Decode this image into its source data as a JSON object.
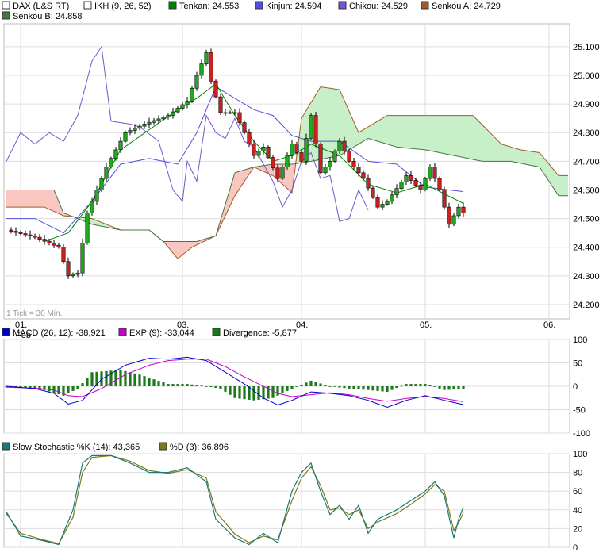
{
  "colors": {
    "up": "#22aa22",
    "down": "#cc2222",
    "tenkan": "#008000",
    "kinjun": "#5050dd",
    "chikou": "#7755cc",
    "senkouA": "#a05a2c",
    "senkouB": "#447744",
    "cloud_bull": "#c8f0c8",
    "cloud_bear": "#f8c8c0",
    "macd": "#0000cc",
    "ema": "#cc00cc",
    "divergence": "#1a7a1a",
    "stochK": "#1a7a7a",
    "stochD": "#7a7a1a",
    "grid": "#dddddd"
  },
  "main_legend": [
    {
      "icon": "square-icon-dax",
      "label": "DAX (L&S RT)",
      "color": "#ffffff"
    },
    {
      "icon": "square-icon-ikh",
      "label": "IKH (9, 26, 52)",
      "color": "#ffffff"
    },
    {
      "icon": "square-icon-tenkan",
      "label": "Tenkan: 24.553",
      "color": "#008000"
    },
    {
      "icon": "square-icon-kinjun",
      "label": "Kinjun: 24.594",
      "color": "#5050dd"
    },
    {
      "icon": "square-icon-chikou",
      "label": "Chikou: 24.529",
      "color": "#7755cc"
    },
    {
      "icon": "square-icon-senkou-a",
      "label": "Senkou A: 24.729",
      "color": "#a05a2c"
    },
    {
      "icon": "square-icon-senkou-b",
      "label": "Senkou B: 24.858",
      "color": "#447744"
    }
  ],
  "main_note": "1 Tick = 30 Min.",
  "macd_legend": [
    {
      "icon": "square-icon-macd",
      "label": "MACD (26, 12): -38,921",
      "color": "#0000cc"
    },
    {
      "icon": "square-icon-exp",
      "label": "EXP (9): -33,044",
      "color": "#cc00cc"
    },
    {
      "icon": "square-icon-divergence",
      "label": "Divergence: -5,877",
      "color": "#1a7a1a"
    }
  ],
  "stoch_legend": [
    {
      "icon": "square-icon-stoch-k",
      "label": "Slow Stochastic %K (14): 43,365",
      "color": "#1a7a7a"
    },
    {
      "icon": "square-icon-stoch-d",
      "label": "%D (3): 36,896",
      "color": "#7a7a1a"
    }
  ],
  "x_ticks": [
    {
      "label": "01.",
      "bar": 3
    },
    {
      "label": "03.",
      "bar": 37
    },
    {
      "label": "04.",
      "bar": 62
    },
    {
      "label": "05.",
      "bar": 88
    },
    {
      "label": "06.",
      "bar": 114
    }
  ],
  "x_sublabel": "Feb",
  "chart_data": [
    {
      "type": "candlestick",
      "title": "DAX (L&S RT)",
      "ylim": [
        24150,
        25180
      ],
      "y_ticks": [
        24200,
        24300,
        24400,
        24500,
        24600,
        24700,
        24800,
        24900,
        25000,
        25100
      ],
      "y_tick_labels": [
        "24.200",
        "24.300",
        "24.400",
        "24.500",
        "24.600",
        "24.700",
        "24.800",
        "24.900",
        "25.000",
        "25.100"
      ],
      "close_anchors": [
        [
          0,
          24460
        ],
        [
          6,
          24435
        ],
        [
          11,
          24400
        ],
        [
          13,
          24300
        ],
        [
          15,
          24310
        ],
        [
          17,
          24520
        ],
        [
          21,
          24680
        ],
        [
          25,
          24800
        ],
        [
          29,
          24830
        ],
        [
          34,
          24860
        ],
        [
          38,
          24910
        ],
        [
          40,
          25000
        ],
        [
          42,
          25080
        ],
        [
          43,
          24980
        ],
        [
          45,
          24870
        ],
        [
          48,
          24870
        ],
        [
          50,
          24800
        ],
        [
          52,
          24720
        ],
        [
          54,
          24750
        ],
        [
          57,
          24640
        ],
        [
          60,
          24760
        ],
        [
          62,
          24700
        ],
        [
          64,
          24860
        ],
        [
          66,
          24660
        ],
        [
          68,
          24700
        ],
        [
          70,
          24770
        ],
        [
          72,
          24700
        ],
        [
          75,
          24640
        ],
        [
          78,
          24540
        ],
        [
          80,
          24560
        ],
        [
          84,
          24650
        ],
        [
          87,
          24600
        ],
        [
          89,
          24680
        ],
        [
          91,
          24600
        ],
        [
          93,
          24480
        ],
        [
          95,
          24540
        ],
        [
          96,
          24520
        ]
      ],
      "tenkan_anchors": [
        [
          8,
          24420
        ],
        [
          13,
          24450
        ],
        [
          18,
          24560
        ],
        [
          24,
          24740
        ],
        [
          30,
          24810
        ],
        [
          36,
          24880
        ],
        [
          40,
          24920
        ],
        [
          44,
          24970
        ],
        [
          48,
          24860
        ],
        [
          52,
          24770
        ],
        [
          56,
          24700
        ],
        [
          60,
          24720
        ],
        [
          64,
          24760
        ],
        [
          70,
          24720
        ],
        [
          76,
          24620
        ],
        [
          82,
          24590
        ],
        [
          88,
          24620
        ],
        [
          96,
          24553
        ]
      ],
      "kinjun_anchors": [
        [
          0,
          24500
        ],
        [
          6,
          24500
        ],
        [
          12,
          24450
        ],
        [
          18,
          24560
        ],
        [
          24,
          24690
        ],
        [
          30,
          24710
        ],
        [
          36,
          24690
        ],
        [
          40,
          24800
        ],
        [
          44,
          24960
        ],
        [
          48,
          24920
        ],
        [
          52,
          24880
        ],
        [
          56,
          24860
        ],
        [
          60,
          24790
        ],
        [
          64,
          24770
        ],
        [
          70,
          24770
        ],
        [
          76,
          24700
        ],
        [
          82,
          24690
        ],
        [
          88,
          24610
        ],
        [
          96,
          24594
        ]
      ],
      "chikou_anchors": [
        [
          0,
          24700
        ],
        [
          3,
          24800
        ],
        [
          6,
          24760
        ],
        [
          9,
          24800
        ],
        [
          12,
          24770
        ],
        [
          15,
          24860
        ],
        [
          18,
          25050
        ],
        [
          20,
          25100
        ],
        [
          22,
          24840
        ],
        [
          26,
          24830
        ],
        [
          28,
          24820
        ],
        [
          32,
          24770
        ],
        [
          35,
          24600
        ],
        [
          37,
          24560
        ],
        [
          38,
          24700
        ],
        [
          40,
          24630
        ],
        [
          42,
          24860
        ],
        [
          44,
          24800
        ],
        [
          46,
          24780
        ],
        [
          48,
          24850
        ],
        [
          50,
          24770
        ],
        [
          52,
          24750
        ],
        [
          54,
          24690
        ],
        [
          56,
          24630
        ],
        [
          58,
          24540
        ],
        [
          60,
          24600
        ],
        [
          62,
          24700
        ],
        [
          64,
          24730
        ],
        [
          66,
          24640
        ],
        [
          68,
          24650
        ],
        [
          70,
          24490
        ],
        [
          72,
          24500
        ],
        [
          74,
          24600
        ],
        [
          76,
          24530
        ]
      ],
      "senkou_a_anchors": [
        [
          0,
          24540
        ],
        [
          8,
          24540
        ],
        [
          12,
          24510
        ],
        [
          18,
          24500
        ],
        [
          24,
          24460
        ],
        [
          30,
          24460
        ],
        [
          33,
          24420
        ],
        [
          36,
          24360
        ],
        [
          39,
          24400
        ],
        [
          44,
          24440
        ],
        [
          48,
          24580
        ],
        [
          52,
          24680
        ],
        [
          56,
          24650
        ],
        [
          60,
          24590
        ],
        [
          62,
          24850
        ],
        [
          66,
          24960
        ],
        [
          70,
          24950
        ],
        [
          74,
          24800
        ],
        [
          76,
          24820
        ],
        [
          80,
          24860
        ],
        [
          86,
          24860
        ],
        [
          92,
          24860
        ],
        [
          98,
          24860
        ],
        [
          104,
          24760
        ],
        [
          108,
          24740
        ],
        [
          112,
          24730
        ],
        [
          116,
          24650
        ],
        [
          120,
          24650
        ]
      ],
      "senkou_b_anchors": [
        [
          0,
          24600
        ],
        [
          6,
          24600
        ],
        [
          10,
          24600
        ],
        [
          12,
          24520
        ],
        [
          18,
          24480
        ],
        [
          24,
          24460
        ],
        [
          30,
          24460
        ],
        [
          33,
          24420
        ],
        [
          36,
          24420
        ],
        [
          40,
          24420
        ],
        [
          44,
          24440
        ],
        [
          48,
          24660
        ],
        [
          52,
          24680
        ],
        [
          56,
          24690
        ],
        [
          60,
          24690
        ],
        [
          64,
          24700
        ],
        [
          70,
          24720
        ],
        [
          76,
          24780
        ],
        [
          82,
          24750
        ],
        [
          88,
          24740
        ],
        [
          94,
          24720
        ],
        [
          100,
          24700
        ],
        [
          106,
          24700
        ],
        [
          112,
          24680
        ],
        [
          116,
          24580
        ],
        [
          120,
          24580
        ]
      ]
    },
    {
      "type": "macd",
      "title": "MACD (26, 12)",
      "ylim": [
        -100,
        100
      ],
      "y_ticks": [
        -100,
        -50,
        0,
        50,
        100
      ],
      "y_tick_labels": [
        "-100",
        "-50",
        "0",
        "50",
        "100"
      ],
      "macd_anchors": [
        [
          0,
          0
        ],
        [
          6,
          -5
        ],
        [
          10,
          -15
        ],
        [
          13,
          -38
        ],
        [
          16,
          -30
        ],
        [
          20,
          15
        ],
        [
          25,
          45
        ],
        [
          30,
          60
        ],
        [
          34,
          58
        ],
        [
          38,
          62
        ],
        [
          42,
          55
        ],
        [
          46,
          30
        ],
        [
          50,
          5
        ],
        [
          54,
          -25
        ],
        [
          57,
          -40
        ],
        [
          60,
          -30
        ],
        [
          64,
          -12
        ],
        [
          68,
          -15
        ],
        [
          72,
          -20
        ],
        [
          76,
          -30
        ],
        [
          80,
          -45
        ],
        [
          84,
          -30
        ],
        [
          88,
          -20
        ],
        [
          92,
          -30
        ],
        [
          96,
          -39
        ]
      ],
      "exp_anchors": [
        [
          0,
          -2
        ],
        [
          6,
          -4
        ],
        [
          10,
          -8
        ],
        [
          13,
          -20
        ],
        [
          16,
          -22
        ],
        [
          20,
          -5
        ],
        [
          25,
          25
        ],
        [
          30,
          45
        ],
        [
          34,
          55
        ],
        [
          38,
          58
        ],
        [
          42,
          58
        ],
        [
          46,
          42
        ],
        [
          50,
          20
        ],
        [
          54,
          0
        ],
        [
          57,
          -15
        ],
        [
          60,
          -22
        ],
        [
          64,
          -18
        ],
        [
          68,
          -14
        ],
        [
          72,
          -18
        ],
        [
          76,
          -26
        ],
        [
          80,
          -32
        ],
        [
          84,
          -26
        ],
        [
          88,
          -22
        ],
        [
          92,
          -26
        ],
        [
          96,
          -33
        ]
      ],
      "divergence_anchors": [
        [
          0,
          0
        ],
        [
          8,
          -8
        ],
        [
          12,
          -20
        ],
        [
          15,
          -5
        ],
        [
          18,
          30
        ],
        [
          24,
          35
        ],
        [
          28,
          25
        ],
        [
          34,
          5
        ],
        [
          38,
          5
        ],
        [
          42,
          0
        ],
        [
          45,
          -5
        ],
        [
          48,
          -25
        ],
        [
          52,
          -30
        ],
        [
          56,
          -25
        ],
        [
          60,
          -5
        ],
        [
          64,
          12
        ],
        [
          68,
          0
        ],
        [
          72,
          -5
        ],
        [
          76,
          -8
        ],
        [
          80,
          -12
        ],
        [
          84,
          5
        ],
        [
          88,
          5
        ],
        [
          92,
          -8
        ],
        [
          96,
          -6
        ]
      ]
    },
    {
      "type": "stochastic",
      "title": "Slow Stochastic %K (14)",
      "ylim": [
        0,
        100
      ],
      "y_ticks": [
        0,
        20,
        40,
        60,
        80,
        100
      ],
      "y_tick_labels": [
        "0",
        "20",
        "40",
        "60",
        "80",
        "100"
      ],
      "k_anchors": [
        [
          0,
          38
        ],
        [
          3,
          12
        ],
        [
          7,
          8
        ],
        [
          11,
          3
        ],
        [
          14,
          40
        ],
        [
          16,
          90
        ],
        [
          18,
          98
        ],
        [
          22,
          98
        ],
        [
          26,
          90
        ],
        [
          30,
          80
        ],
        [
          34,
          80
        ],
        [
          38,
          85
        ],
        [
          42,
          70
        ],
        [
          44,
          30
        ],
        [
          48,
          10
        ],
        [
          51,
          3
        ],
        [
          54,
          15
        ],
        [
          57,
          5
        ],
        [
          60,
          60
        ],
        [
          62,
          80
        ],
        [
          64,
          90
        ],
        [
          66,
          60
        ],
        [
          68,
          35
        ],
        [
          70,
          45
        ],
        [
          72,
          30
        ],
        [
          74,
          45
        ],
        [
          76,
          15
        ],
        [
          78,
          30
        ],
        [
          82,
          40
        ],
        [
          85,
          50
        ],
        [
          88,
          60
        ],
        [
          90,
          70
        ],
        [
          92,
          55
        ],
        [
          94,
          10
        ],
        [
          95,
          30
        ],
        [
          96,
          43
        ]
      ],
      "d_anchors": [
        [
          0,
          36
        ],
        [
          3,
          15
        ],
        [
          7,
          9
        ],
        [
          11,
          4
        ],
        [
          14,
          32
        ],
        [
          16,
          80
        ],
        [
          18,
          96
        ],
        [
          22,
          98
        ],
        [
          26,
          92
        ],
        [
          30,
          82
        ],
        [
          34,
          79
        ],
        [
          38,
          83
        ],
        [
          42,
          74
        ],
        [
          44,
          38
        ],
        [
          48,
          14
        ],
        [
          51,
          5
        ],
        [
          54,
          12
        ],
        [
          57,
          8
        ],
        [
          60,
          50
        ],
        [
          62,
          74
        ],
        [
          64,
          86
        ],
        [
          66,
          66
        ],
        [
          68,
          40
        ],
        [
          70,
          42
        ],
        [
          72,
          35
        ],
        [
          74,
          40
        ],
        [
          76,
          20
        ],
        [
          78,
          27
        ],
        [
          82,
          36
        ],
        [
          85,
          46
        ],
        [
          88,
          57
        ],
        [
          90,
          67
        ],
        [
          92,
          60
        ],
        [
          94,
          18
        ],
        [
          95,
          26
        ],
        [
          96,
          37
        ]
      ]
    }
  ]
}
